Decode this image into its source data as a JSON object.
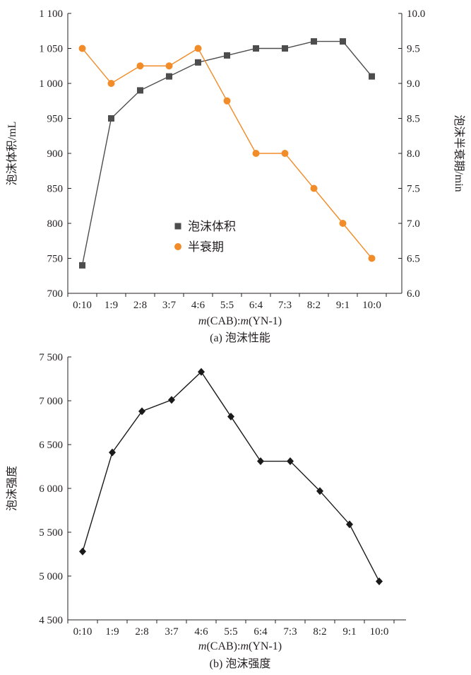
{
  "chart_data": [
    {
      "type": "line",
      "caption": "(a) 泡沫性能",
      "categories": [
        "0:10",
        "1:9",
        "2:8",
        "3:7",
        "4:6",
        "5:5",
        "6:4",
        "7:3",
        "8:2",
        "9:1",
        "10:0"
      ],
      "xlabel_parts": [
        {
          "text": "m",
          "italic": true
        },
        {
          "text": "(CAB):",
          "italic": false
        },
        {
          "text": "m",
          "italic": true
        },
        {
          "text": "(YN-1)",
          "italic": false
        }
      ],
      "ylabel": "泡沫体积/mL",
      "ylabel_right": "泡沫半衰期/min",
      "ylim": [
        700,
        1100
      ],
      "ylim_right": [
        6.0,
        10.0
      ],
      "yticks": [
        700,
        750,
        800,
        850,
        900,
        950,
        1000,
        1050,
        1100
      ],
      "yticks_labels": [
        "700",
        "750",
        "800",
        "850",
        "900",
        "950",
        "1 000",
        "1 050",
        "1 100"
      ],
      "yticks_right": [
        6.0,
        6.5,
        7.0,
        7.5,
        8.0,
        8.5,
        9.0,
        9.5,
        10.0
      ],
      "yticks_right_labels": [
        "6.0",
        "6.5",
        "7.0",
        "7.5",
        "8.0",
        "8.5",
        "9.0",
        "9.5",
        "10.0"
      ],
      "legend_position": "center-left",
      "grid": false,
      "series": [
        {
          "name": "泡沫体积",
          "axis": "left",
          "marker": "square",
          "color": "#4d4d4d",
          "values": [
            740,
            950,
            990,
            1010,
            1030,
            1040,
            1050,
            1050,
            1060,
            1060,
            1010
          ]
        },
        {
          "name": "半衰期",
          "axis": "right",
          "marker": "circle",
          "color": "#f28c28",
          "values": [
            9.5,
            9.0,
            9.25,
            9.25,
            9.5,
            8.75,
            8.0,
            8.0,
            7.5,
            7.0,
            6.5
          ]
        }
      ]
    },
    {
      "type": "line",
      "caption": "(b) 泡沫强度",
      "categories": [
        "0:10",
        "1:9",
        "2:8",
        "3:7",
        "4:6",
        "5:5",
        "6:4",
        "7:3",
        "8:2",
        "9:1",
        "10:0"
      ],
      "xlabel_parts": [
        {
          "text": "m",
          "italic": true
        },
        {
          "text": "(CAB):",
          "italic": false
        },
        {
          "text": "m",
          "italic": true
        },
        {
          "text": "(YN-1)",
          "italic": false
        }
      ],
      "ylabel": "泡沫强度",
      "ylim": [
        4500,
        7500
      ],
      "yticks": [
        4500,
        5000,
        5500,
        6000,
        6500,
        7000,
        7500
      ],
      "yticks_labels": [
        "4 500",
        "5 000",
        "5 500",
        "6 000",
        "6 500",
        "7 000",
        "7 500"
      ],
      "grid": false,
      "series": [
        {
          "axis": "left",
          "marker": "diamond",
          "color": "#1a1a1a",
          "values": [
            5280,
            6410,
            6880,
            7010,
            7330,
            6820,
            6310,
            6310,
            5970,
            5590,
            4940
          ]
        }
      ]
    }
  ]
}
